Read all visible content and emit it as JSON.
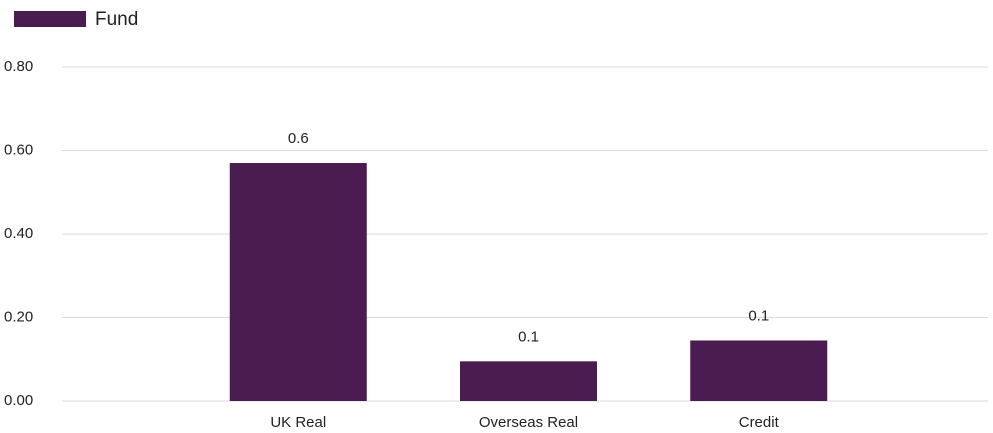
{
  "chart_data": {
    "type": "bar",
    "categories": [
      null,
      "UK Real",
      "Overseas Real",
      "Credit",
      null
    ],
    "series": [
      {
        "name": "Fund",
        "color": "#4a1c50",
        "values": [
          null,
          0.57,
          0.095,
          0.145,
          null
        ],
        "value_labels": [
          null,
          "0.6",
          "0.1",
          "0.1",
          null
        ]
      }
    ],
    "ylim": [
      0,
      0.8
    ],
    "yticks": [
      {
        "value": 0,
        "label": "0.00"
      },
      {
        "value": 0.2,
        "label": "0.20"
      },
      {
        "value": 0.4,
        "label": "0.40"
      },
      {
        "value": 0.6,
        "label": "0.60"
      },
      {
        "value": 0.8,
        "label": "0.80"
      }
    ],
    "grid": true,
    "legend": "top-left"
  }
}
